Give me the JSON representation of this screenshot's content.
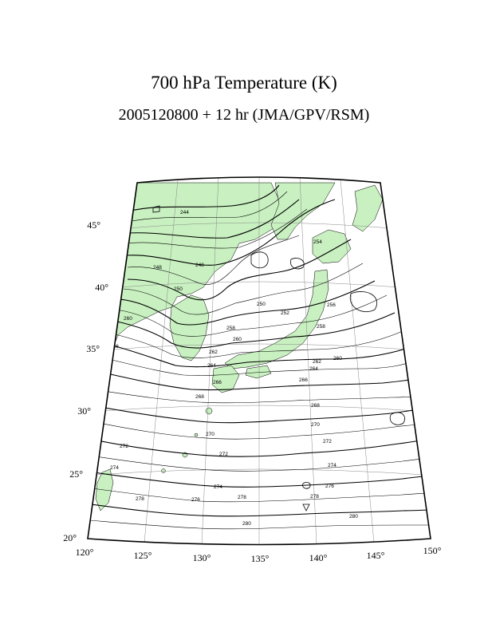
{
  "map": {
    "title": "700 hPa Temperature (K)",
    "subtitle": "2005120800 + 12 hr (JMA/GPV/RSM)",
    "land_color": "#c8f0c0",
    "lat_labels": [
      "45°",
      "40°",
      "35°",
      "30°",
      "25°",
      "20°"
    ],
    "lon_labels": [
      "120°",
      "125°",
      "130°",
      "135°",
      "140°",
      "145°",
      "150°"
    ],
    "contour_levels": [
      "244",
      "248",
      "250",
      "252",
      "254",
      "256",
      "258",
      "260",
      "262",
      "264",
      "266",
      "268",
      "270",
      "272",
      "274",
      "276",
      "278",
      "280"
    ]
  }
}
